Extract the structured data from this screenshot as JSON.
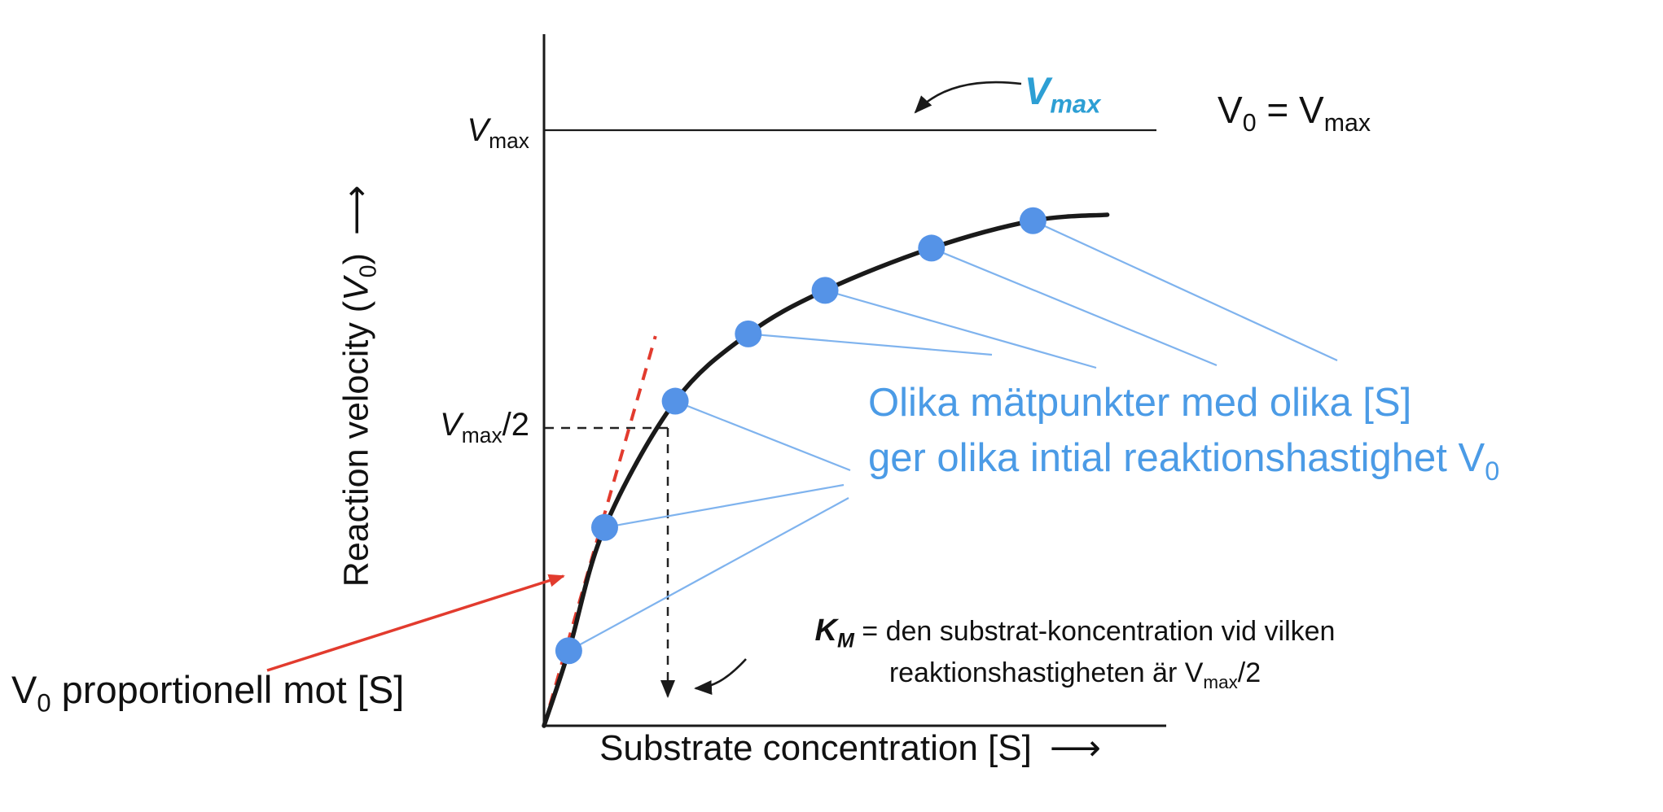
{
  "colors": {
    "background": "#ffffff",
    "curve": "#1a1a1a",
    "axis": "#1a1a1a",
    "points_blue": "#5593e7",
    "callout_line_blue": "#7fb3ee",
    "annotation_text_blue": "#4b9be6",
    "vmax_callout_blue": "#2d9fd4",
    "annotation_red": "#e23b2e"
  },
  "labels": {
    "y_axis": {
      "prefix": "Reaction velocity (",
      "var": "V",
      "sub": "0",
      "suffix": ")",
      "arrow": "⟶"
    },
    "x_axis": {
      "text": "Substrate concentration [S]",
      "arrow": "⟶"
    },
    "vmax_tick": {
      "var": "V",
      "sub": "max"
    },
    "half_vmax_tick": {
      "var": "V",
      "sub": "max",
      "suffix": "/2"
    },
    "vmax_callout": {
      "var": "V",
      "sub": "max"
    },
    "v0_equals_vmax": {
      "var1": "V",
      "sub1": "0",
      "equals": " = ",
      "var2": "V",
      "sub2": "max"
    },
    "measure_note": {
      "line1": "Olika mätpunkter med olika [S]",
      "line2": "ger olika intial reaktionshastighet V",
      "line2_sub": "0"
    },
    "km_note": {
      "var": "K",
      "var_sub": "M",
      "line1": " = den substrat-koncentration vid vilken",
      "line2": "reaktionshastigheten är V",
      "line2_sub": "max",
      "line2_suffix": "/2"
    },
    "proportional_note": {
      "var": "V",
      "sub": "0",
      "text": " proportionell mot [S]"
    }
  },
  "chart_data": {
    "type": "scatter",
    "title": "",
    "xlabel": "Substrate concentration [S]",
    "ylabel": "Reaction velocity (V0)",
    "x_units": "relative to KM (no numeric ticks shown)",
    "y_units": "fraction of Vmax (no numeric ticks shown)",
    "x_range": [
      0,
      4.55
    ],
    "y_range": [
      0,
      1.15
    ],
    "grid": false,
    "legend": false,
    "y_tick_labels": [
      "Vmax",
      "Vmax/2"
    ],
    "curve_model": "Michaelis-Menten saturation: V0 = Vmax*[S]/(KM+[S])",
    "vmax_line": 1.0,
    "half_vmax": 0.5,
    "km_in_x_units": 1.0,
    "points_s_over_km": [
      0.2,
      0.49,
      1.06,
      1.65,
      2.27,
      3.13,
      3.95
    ],
    "points_v_over_vmax": [
      0.126,
      0.333,
      0.545,
      0.658,
      0.731,
      0.802,
      0.848
    ],
    "curve_end": {
      "s": 4.55,
      "v": 0.858
    },
    "tangent_line": {
      "from_s": 0,
      "to_s": 0.9,
      "slope_v_per_s": 0.727
    }
  }
}
